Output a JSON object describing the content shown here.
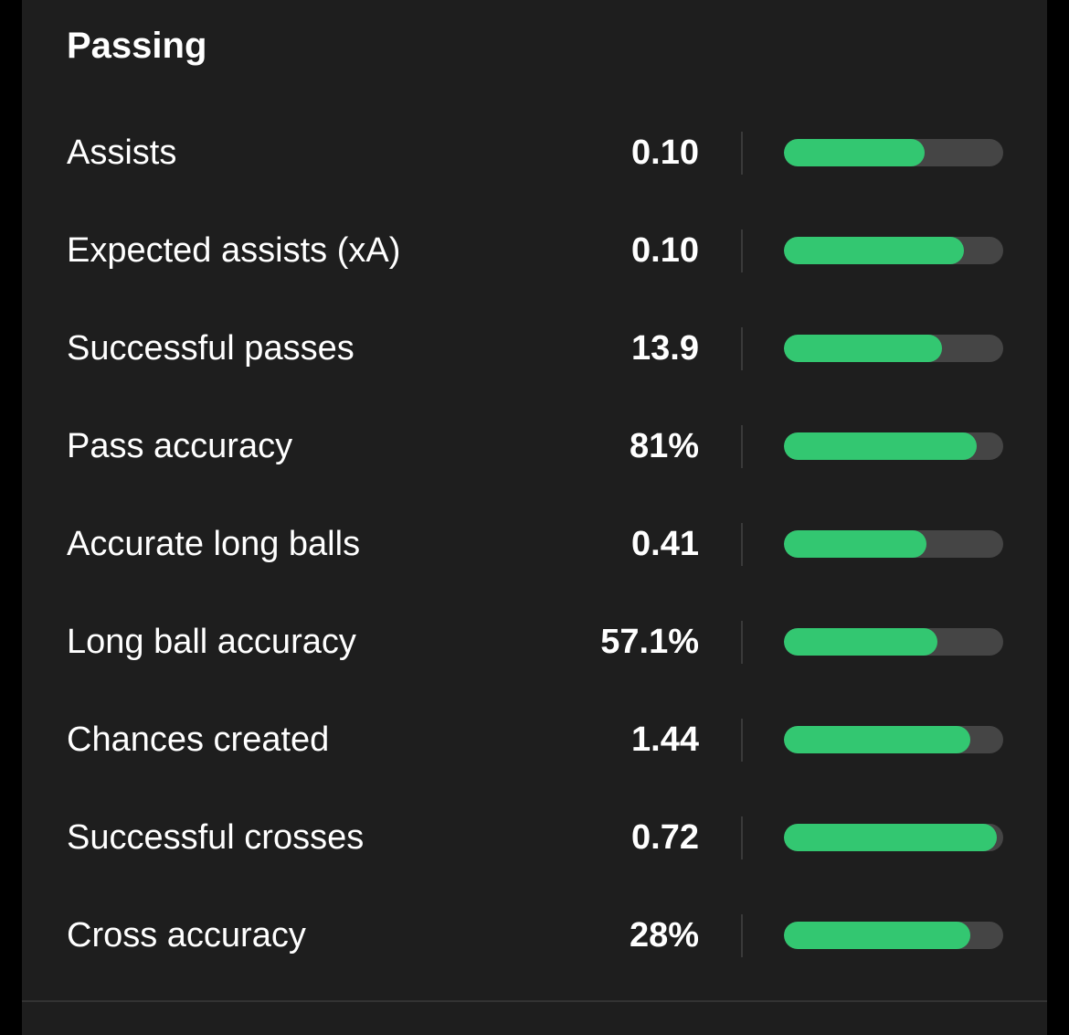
{
  "section": {
    "title": "Passing"
  },
  "colors": {
    "background": "#000000",
    "card": "#1e1e1e",
    "bar_fill": "#33c771",
    "bar_track": "#454545"
  },
  "stats": [
    {
      "label": "Assists",
      "value": "0.10",
      "level": 0.64
    },
    {
      "label": "Expected assists (xA)",
      "value": "0.10",
      "level": 0.82
    },
    {
      "label": "Successful passes",
      "value": "13.9",
      "level": 0.72
    },
    {
      "label": "Pass accuracy",
      "value": "81%",
      "level": 0.88
    },
    {
      "label": "Accurate long balls",
      "value": "0.41",
      "level": 0.65
    },
    {
      "label": "Long ball accuracy",
      "value": "57.1%",
      "level": 0.7
    },
    {
      "label": "Chances created",
      "value": "1.44",
      "level": 0.85
    },
    {
      "label": "Successful crosses",
      "value": "0.72",
      "level": 0.97
    },
    {
      "label": "Cross accuracy",
      "value": "28%",
      "level": 0.85
    }
  ]
}
